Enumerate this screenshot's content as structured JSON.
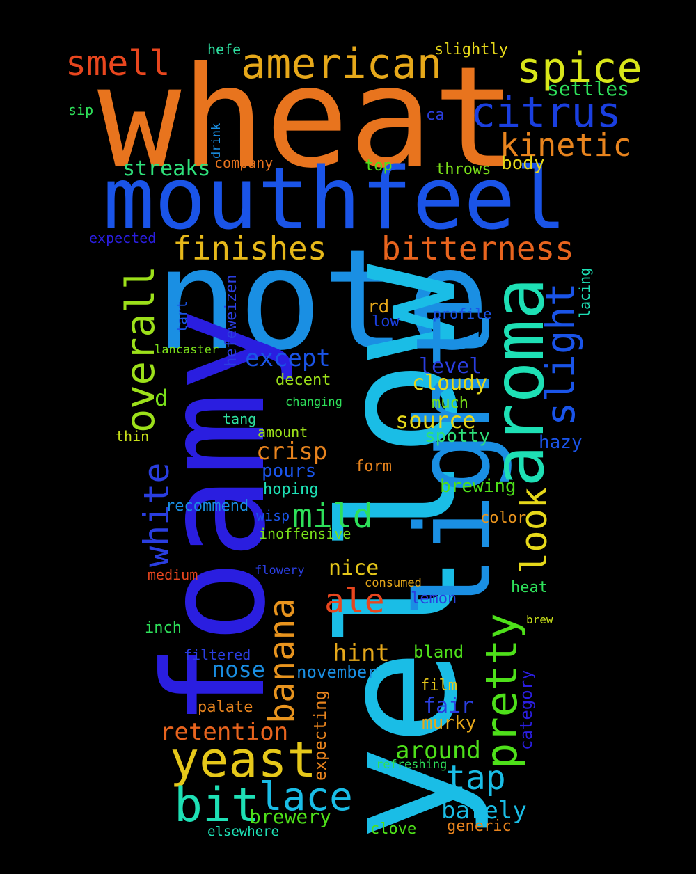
{
  "words": [
    {
      "text": "wheat",
      "color": "#e8741e"
    },
    {
      "text": "note",
      "color": "#1a8fe3"
    },
    {
      "text": "yellow",
      "color": "#1abde6"
    },
    {
      "text": "foamy",
      "color": "#2a1ee0"
    },
    {
      "text": "mouthfeel",
      "color": "#1a54e8"
    },
    {
      "text": "light",
      "color": "#1a8fe3"
    },
    {
      "text": "aroma",
      "color": "#1ee0b5"
    },
    {
      "text": "american",
      "color": "#e6a81a"
    },
    {
      "text": "spice",
      "color": "#d8e61a"
    },
    {
      "text": "citrus",
      "color": "#1a3fe0"
    },
    {
      "text": "smell",
      "color": "#e8461e"
    },
    {
      "text": "kinetic",
      "color": "#e8841e"
    },
    {
      "text": "settles",
      "color": "#2ee05a"
    },
    {
      "text": "finishes",
      "color": "#e6b81a"
    },
    {
      "text": "bitterness",
      "color": "#e8641e"
    },
    {
      "text": "overall",
      "color": "#9ce01a"
    },
    {
      "text": "slight",
      "color": "#1a54e8"
    },
    {
      "text": "streaks",
      "color": "#2ee07a"
    },
    {
      "text": "company",
      "color": "#e8741e"
    },
    {
      "text": "top",
      "color": "#4ee01a"
    },
    {
      "text": "throws",
      "color": "#7ae01a"
    },
    {
      "text": "body",
      "color": "#e6d81a"
    },
    {
      "text": "expected",
      "color": "#2a1ee0"
    },
    {
      "text": "hefe",
      "color": "#2ee0a0"
    },
    {
      "text": "slightly",
      "color": "#e6d81a"
    },
    {
      "text": "sip",
      "color": "#2ee05a"
    },
    {
      "text": "ca",
      "color": "#2a3ee0"
    },
    {
      "text": "drink",
      "color": "#1a8fe3"
    },
    {
      "text": "hefeweizen",
      "color": "#2a3ee0"
    },
    {
      "text": "tart",
      "color": "#1a54e8"
    },
    {
      "text": "lacing",
      "color": "#1ee0b5"
    },
    {
      "text": "profile",
      "color": "#1a54e8"
    },
    {
      "text": "low",
      "color": "#1a3fe0"
    },
    {
      "text": "rd",
      "color": "#e6a81a"
    },
    {
      "text": "except",
      "color": "#1a54e8"
    },
    {
      "text": "lancaster",
      "color": "#7ae01a"
    },
    {
      "text": "level",
      "color": "#2a3ee0"
    },
    {
      "text": "decent",
      "color": "#9ce01a"
    },
    {
      "text": "cloudy",
      "color": "#e6d81a"
    },
    {
      "text": "d",
      "color": "#7ae01a"
    },
    {
      "text": "changing",
      "color": "#2ee05a"
    },
    {
      "text": "much",
      "color": "#7ae01a"
    },
    {
      "text": "tang",
      "color": "#2ee0a0"
    },
    {
      "text": "source",
      "color": "#e6d81a"
    },
    {
      "text": "thin",
      "color": "#c8e01a"
    },
    {
      "text": "amount",
      "color": "#9ce01a"
    },
    {
      "text": "spotty",
      "color": "#2ee07a"
    },
    {
      "text": "white",
      "color": "#2a3ee0"
    },
    {
      "text": "hazy",
      "color": "#1a54e8"
    },
    {
      "text": "crisp",
      "color": "#e8841e"
    },
    {
      "text": "banana",
      "color": "#e8941e"
    },
    {
      "text": "pours",
      "color": "#1a54e8"
    },
    {
      "text": "form",
      "color": "#e8841e"
    },
    {
      "text": "hoping",
      "color": "#1ee0b5"
    },
    {
      "text": "brewing",
      "color": "#4ee01a"
    },
    {
      "text": "look",
      "color": "#e6d81a"
    },
    {
      "text": "recommend",
      "color": "#1a8fe3"
    },
    {
      "text": "mild",
      "color": "#2ee05a"
    },
    {
      "text": "wisp",
      "color": "#1a54e8"
    },
    {
      "text": "color",
      "color": "#e8941e"
    },
    {
      "text": "inoffensive",
      "color": "#7ae01a"
    },
    {
      "text": "pretty",
      "color": "#4ee01a"
    },
    {
      "text": "medium",
      "color": "#e8461e"
    },
    {
      "text": "flowery",
      "color": "#2a3ee0"
    },
    {
      "text": "nice",
      "color": "#e6c81a"
    },
    {
      "text": "consumed",
      "color": "#e6a81a"
    },
    {
      "text": "heat",
      "color": "#2ee05a"
    },
    {
      "text": "ale",
      "color": "#e8461e"
    },
    {
      "text": "lemon",
      "color": "#2a3ee0"
    },
    {
      "text": "brew",
      "color": "#c8e01a"
    },
    {
      "text": "inch",
      "color": "#2ee05a"
    },
    {
      "text": "hint",
      "color": "#e6a81a"
    },
    {
      "text": "bland",
      "color": "#4ee01a"
    },
    {
      "text": "filtered",
      "color": "#2a3ee0"
    },
    {
      "text": "nose",
      "color": "#1a8fe3"
    },
    {
      "text": "november",
      "color": "#1a8fe3"
    },
    {
      "text": "category",
      "color": "#2a1ee0"
    },
    {
      "text": "film",
      "color": "#e6c81a"
    },
    {
      "text": "expecting",
      "color": "#e8841e"
    },
    {
      "text": "fair",
      "color": "#2a3ee0"
    },
    {
      "text": "palate",
      "color": "#e8841e"
    },
    {
      "text": "murky",
      "color": "#e6a81a"
    },
    {
      "text": "retention",
      "color": "#e8641e"
    },
    {
      "text": "yeast",
      "color": "#e6c81a"
    },
    {
      "text": "around",
      "color": "#4ee01a"
    },
    {
      "text": "refreshing",
      "color": "#2ee05a"
    },
    {
      "text": "tap",
      "color": "#1abde6"
    },
    {
      "text": "lace",
      "color": "#1abde6"
    },
    {
      "text": "bit",
      "color": "#1ee0b5"
    },
    {
      "text": "barely",
      "color": "#1abde6"
    },
    {
      "text": "brewery",
      "color": "#4ee01a"
    },
    {
      "text": "elsewhere",
      "color": "#1ee0b5"
    },
    {
      "text": "clove",
      "color": "#4ee01a"
    },
    {
      "text": "generic",
      "color": "#e8841e"
    }
  ]
}
